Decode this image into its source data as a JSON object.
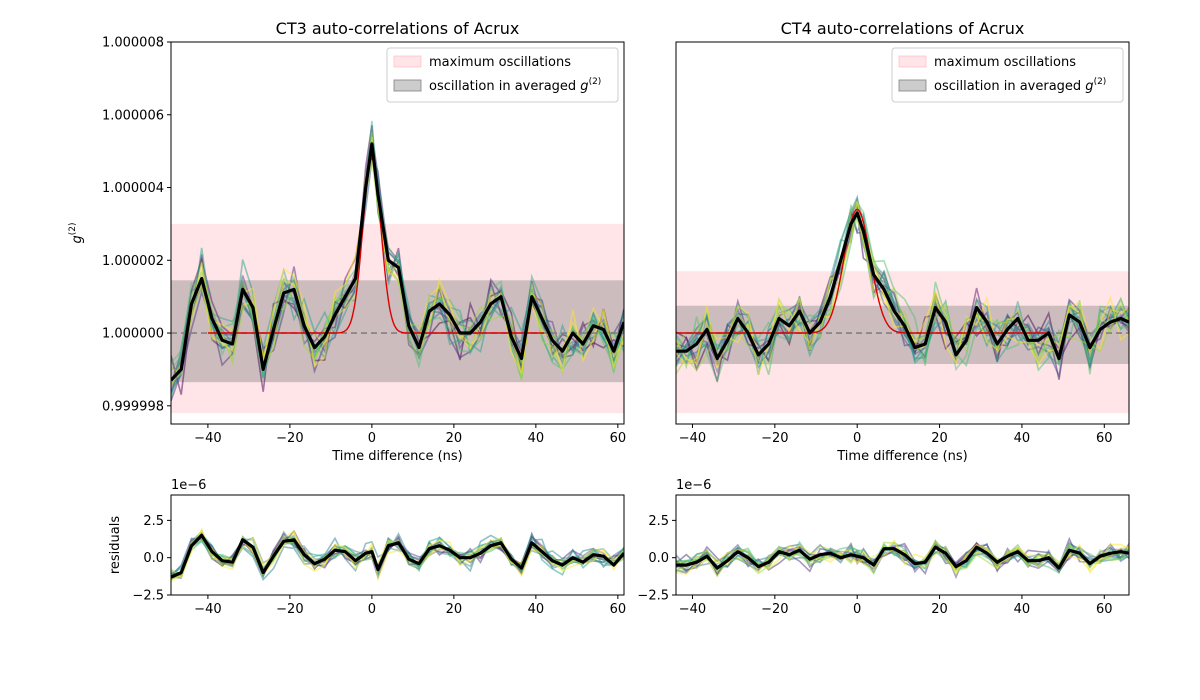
{
  "colors": {
    "max_band": "#ffb3bd",
    "avg_band": "#7f7f7f",
    "fit": "#dd0000",
    "mean": "#000000",
    "baseline": "#808080",
    "viridis": [
      "#440154",
      "#46327e",
      "#365c8d",
      "#277f8e",
      "#1fa187",
      "#4ac16d",
      "#a0da39",
      "#fde725"
    ]
  },
  "chart_data": [
    {
      "id": "ct3",
      "type": "line",
      "title": "CT3 auto-correlations of Acrux",
      "xlabel": "Time difference (ns)",
      "ylabel": "g^(2)",
      "ylabel_main": "g",
      "ylabel_sup": "(2)",
      "xlim": [
        -49,
        61.5
      ],
      "ylim": [
        0.9999975,
        1.000008
      ],
      "x_ticks": [
        -40,
        -20,
        0,
        20,
        40,
        60
      ],
      "x_tick_labels": [
        "−40",
        "−20",
        "0",
        "20",
        "40",
        "60"
      ],
      "y_ticks": [
        0.999998,
        1.0,
        1.000002,
        1.000004,
        1.000006,
        1.000008
      ],
      "y_tick_labels": [
        "0.999998",
        "1.000000",
        "1.000002",
        "1.000004",
        "1.000006",
        "1.000008"
      ],
      "baseline": 1.0,
      "max_band": [
        0.9999978,
        1.000003
      ],
      "avg_band": [
        0.99999865,
        1.00000145
      ],
      "legend": {
        "position": "upper right",
        "entries": [
          "maximum oscillations",
          "oscillation in averaged g(2)"
        ],
        "main_text": "oscillation in averaged ",
        "g_text": "g",
        "sup_text": "(2)"
      },
      "fit": {
        "center": 0.0,
        "amplitude": 4.8e-06,
        "sigma": 2.2,
        "x_range": [
          -40,
          42
        ]
      },
      "mean_x": [
        -49,
        -46.5,
        -44,
        -41.5,
        -39,
        -36.5,
        -34,
        -31.5,
        -29,
        -26.5,
        -24,
        -21.5,
        -19,
        -16.5,
        -14,
        -11.5,
        -9,
        -6.5,
        -4,
        -1.5,
        0,
        1.5,
        4,
        6.5,
        9,
        11.5,
        14,
        16.5,
        19,
        21.5,
        24,
        26.5,
        29,
        31.5,
        34,
        36.5,
        39,
        41.5,
        44,
        46.5,
        49,
        51.5,
        54,
        56.5,
        59,
        61.5
      ],
      "mean_y": [
        0.9999987,
        0.999999,
        1.0000008,
        1.0000015,
        1.0000004,
        0.9999998,
        0.9999997,
        1.0000012,
        1.0000007,
        0.999999,
        1.0000001,
        1.0000011,
        1.0000012,
        1.0000002,
        0.9999996,
        0.9999999,
        1.0000005,
        1.000001,
        1.0000015,
        1.000004,
        1.0000052,
        1.0000038,
        1.000002,
        1.0000018,
        1.0000002,
        0.9999996,
        1.0000006,
        1.0000008,
        1.0000005,
        1.0,
        1.0,
        1.0000003,
        1.0000008,
        1.000001,
        0.9999999,
        0.9999993,
        1.000001,
        1.0000004,
        0.9999998,
        0.9999995,
        1.0,
        0.9999997,
        1.0000002,
        1.0000001,
        0.9999995,
        1.0000003
      ]
    },
    {
      "id": "ct4",
      "type": "line",
      "title": "CT4 auto-correlations of Acrux",
      "xlabel": "Time difference (ns)",
      "ylabel": "",
      "xlim": [
        -44,
        66
      ],
      "ylim": [
        0.9999975,
        1.000008
      ],
      "x_ticks": [
        -40,
        -20,
        0,
        20,
        40,
        60
      ],
      "x_tick_labels": [
        "−40",
        "−20",
        "0",
        "20",
        "40",
        "60"
      ],
      "y_ticks": [],
      "y_tick_labels": [],
      "baseline": 1.0,
      "max_band": [
        0.9999978,
        1.0000017
      ],
      "avg_band": [
        0.99999915,
        1.00000075
      ],
      "legend": {
        "position": "upper right",
        "entries": [
          "maximum oscillations",
          "oscillation in averaged g(2)"
        ],
        "main_text": "oscillation in averaged ",
        "g_text": "g",
        "sup_text": "(2)"
      },
      "fit": {
        "center": 0.0,
        "amplitude": 3.4e-06,
        "sigma": 3.2,
        "x_range": [
          -44,
          46
        ]
      },
      "mean_x": [
        -44,
        -41.5,
        -39,
        -36.5,
        -34,
        -31.5,
        -29,
        -26.5,
        -24,
        -21.5,
        -19,
        -16.5,
        -14,
        -11.5,
        -9,
        -6.5,
        -4,
        -1.5,
        0,
        1.5,
        4,
        6.5,
        9,
        11.5,
        14,
        16.5,
        19,
        21.5,
        24,
        26.5,
        29,
        31.5,
        34,
        36.5,
        39,
        41.5,
        44,
        46.5,
        49,
        51.5,
        54,
        56.5,
        59,
        61.5,
        64,
        66
      ],
      "mean_y": [
        0.9999995,
        0.9999995,
        0.9999997,
        1.0000001,
        0.9999993,
        0.9999998,
        1.0000004,
        1.0,
        0.9999994,
        0.9999997,
        1.0000004,
        1.0000002,
        1.0000006,
        1.0,
        1.0000003,
        1.000001,
        1.000002,
        1.000003,
        1.0000033,
        1.0000028,
        1.0000016,
        1.0000012,
        1.0000006,
        1.0000002,
        0.9999996,
        0.9999997,
        1.0000007,
        1.0000003,
        0.9999994,
        0.9999998,
        1.0000007,
        1.0000003,
        0.9999997,
        1.0000001,
        1.0000004,
        0.9999998,
        0.9999998,
        1.0,
        0.9999993,
        1.0000005,
        1.0000003,
        0.9999996,
        1.0000001,
        1.0000003,
        1.0000004,
        1.0000003
      ]
    },
    {
      "id": "ct3_res",
      "type": "line",
      "title": "",
      "xlabel": "",
      "ylabel": "residuals",
      "offset_label": "1e−6",
      "xlim": [
        -49,
        61.5
      ],
      "ylim": [
        -2.5,
        4.2
      ],
      "x_ticks": [
        -40,
        -20,
        0,
        20,
        40,
        60
      ],
      "x_tick_labels": [
        "−40",
        "−20",
        "0",
        "20",
        "40",
        "60"
      ],
      "y_ticks": [
        -2.5,
        0.0,
        2.5
      ],
      "y_tick_labels": [
        "−2.5",
        "0.0",
        "2.5"
      ],
      "mean_x": [
        -49,
        -46.5,
        -44,
        -41.5,
        -39,
        -36.5,
        -34,
        -31.5,
        -29,
        -26.5,
        -24,
        -21.5,
        -19,
        -16.5,
        -14,
        -11.5,
        -9,
        -6.5,
        -4,
        -1.5,
        0,
        1.5,
        4,
        6.5,
        9,
        11.5,
        14,
        16.5,
        19,
        21.5,
        24,
        26.5,
        29,
        31.5,
        34,
        36.5,
        39,
        41.5,
        44,
        46.5,
        49,
        51.5,
        54,
        56.5,
        59,
        61.5
      ],
      "mean_y": [
        -1.3,
        -1.0,
        0.8,
        1.5,
        0.4,
        -0.2,
        -0.3,
        1.2,
        0.7,
        -1.0,
        0.1,
        1.1,
        1.2,
        0.2,
        -0.4,
        -0.1,
        0.5,
        0.4,
        -0.2,
        0.3,
        0.4,
        -0.8,
        0.8,
        1.0,
        -0.1,
        -0.4,
        0.6,
        0.8,
        0.5,
        0.0,
        0.0,
        0.3,
        0.8,
        1.0,
        -0.1,
        -0.7,
        1.0,
        0.4,
        -0.2,
        -0.5,
        0.0,
        -0.3,
        0.2,
        0.1,
        -0.5,
        0.3
      ]
    },
    {
      "id": "ct4_res",
      "type": "line",
      "title": "",
      "xlabel": "",
      "ylabel": "",
      "offset_label": "1e−6",
      "xlim": [
        -44,
        66
      ],
      "ylim": [
        -2.5,
        4.2
      ],
      "x_ticks": [
        -40,
        -20,
        0,
        20,
        40,
        60
      ],
      "x_tick_labels": [
        "−40",
        "−20",
        "0",
        "20",
        "40",
        "60"
      ],
      "y_ticks": [
        -2.5,
        0.0,
        2.5
      ],
      "y_tick_labels": [
        "−2.5",
        "0.0",
        "2.5"
      ],
      "mean_x": [
        -44,
        -41.5,
        -39,
        -36.5,
        -34,
        -31.5,
        -29,
        -26.5,
        -24,
        -21.5,
        -19,
        -16.5,
        -14,
        -11.5,
        -9,
        -6.5,
        -4,
        -1.5,
        0,
        1.5,
        4,
        6.5,
        9,
        11.5,
        14,
        16.5,
        19,
        21.5,
        24,
        26.5,
        29,
        31.5,
        34,
        36.5,
        39,
        41.5,
        44,
        46.5,
        49,
        51.5,
        54,
        56.5,
        59,
        61.5,
        64,
        66
      ],
      "mean_y": [
        -0.5,
        -0.5,
        -0.3,
        0.1,
        -0.7,
        -0.2,
        0.4,
        0.0,
        -0.6,
        -0.3,
        0.4,
        0.2,
        0.5,
        -0.1,
        0.2,
        0.3,
        0.0,
        0.2,
        0.1,
        0.0,
        -0.5,
        0.6,
        0.6,
        0.2,
        -0.4,
        -0.3,
        0.7,
        0.3,
        -0.6,
        -0.2,
        0.7,
        0.3,
        -0.3,
        0.1,
        0.4,
        -0.2,
        -0.2,
        0.0,
        -0.7,
        0.5,
        0.3,
        -0.4,
        0.1,
        0.3,
        0.4,
        0.3
      ]
    }
  ]
}
